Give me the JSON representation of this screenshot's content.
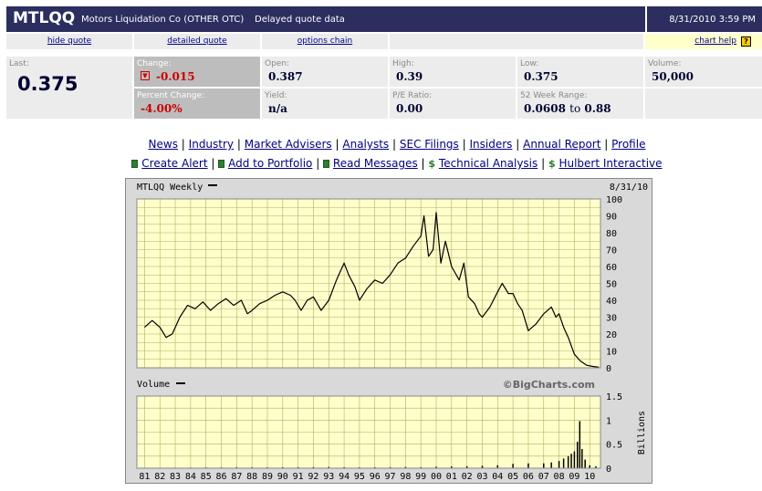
{
  "header": {
    "symbol": "MTLQQ",
    "company": "Motors Liquidation Co (OTHER OTC)",
    "delay_note": "Delayed quote data",
    "datetime": "8/31/2010 3:59 PM"
  },
  "links": {
    "hide_quote": "hide quote",
    "detailed_quote": "detailed quote",
    "options_chain": "options chain",
    "chart_help": "chart help",
    "help_icon": "?"
  },
  "quote": {
    "last_label": "Last:",
    "last": "0.375",
    "change_label": "Change:",
    "change": "-0.015",
    "pct_change_label": "Percent Change:",
    "pct_change": "-4.00%",
    "open_label": "Open:",
    "open": "0.387",
    "yield_label": "Yield:",
    "yield": "n/a",
    "high_label": "High:",
    "high": "0.39",
    "pe_label": "P/E Ratio:",
    "pe": "0.00",
    "low_label": "Low:",
    "low": "0.375",
    "range_label": "52 Week Range:",
    "range_low": "0.0608",
    "range_to": "to",
    "range_high": "0.88",
    "volume_label": "Volume:",
    "volume": "50,000"
  },
  "nav": {
    "news": "News",
    "industry": "Industry",
    "advisers": "Market Advisers",
    "analysts": "Analysts",
    "sec": "SEC Filings",
    "insiders": "Insiders",
    "annual": "Annual Report",
    "profile": "Profile",
    "alert": "Create Alert",
    "portfolio": "Add to Portfolio",
    "messages": "Read Messages",
    "technical": "Technical Analysis",
    "hulbert": "Hulbert Interactive",
    "sep": "|",
    "dollar": "$"
  },
  "chart_data": {
    "type": "line",
    "title": "MTLQQ Weekly",
    "date_label": "8/31/10",
    "watermark": "©BigCharts.com",
    "x_ticks": [
      "81",
      "82",
      "83",
      "84",
      "85",
      "86",
      "87",
      "88",
      "89",
      "90",
      "91",
      "92",
      "93",
      "94",
      "95",
      "96",
      "97",
      "98",
      "99",
      "00",
      "01",
      "02",
      "03",
      "04",
      "05",
      "06",
      "07",
      "08",
      "09",
      "10"
    ],
    "price_ticks": [
      "0",
      "10",
      "20",
      "30",
      "40",
      "50",
      "60",
      "70",
      "80",
      "90",
      "100"
    ],
    "price_ylim": [
      0,
      100
    ],
    "price_series": {
      "name": "MTLQQ",
      "x": [
        1981.0,
        1981.5,
        1982.0,
        1982.4,
        1982.8,
        1983.3,
        1983.8,
        1984.3,
        1984.8,
        1985.3,
        1985.8,
        1986.3,
        1986.8,
        1987.3,
        1987.7,
        1988.0,
        1988.5,
        1989.0,
        1989.5,
        1990.0,
        1990.5,
        1990.8,
        1991.2,
        1991.6,
        1992.0,
        1992.5,
        1993.0,
        1993.5,
        1994.0,
        1994.3,
        1994.7,
        1995.0,
        1995.5,
        1996.0,
        1996.5,
        1997.0,
        1997.5,
        1998.0,
        1998.5,
        1999.0,
        1999.2,
        1999.5,
        1999.8,
        2000.0,
        2000.3,
        2000.6,
        2001.0,
        2001.5,
        2001.8,
        2002.1,
        2002.5,
        2002.8,
        2003.0,
        2003.5,
        2004.0,
        2004.3,
        2004.7,
        2005.0,
        2005.3,
        2005.6,
        2006.0,
        2006.5,
        2007.0,
        2007.5,
        2007.8,
        2008.0,
        2008.3,
        2008.6,
        2009.0,
        2009.4,
        2009.8,
        2010.2,
        2010.6
      ],
      "y": [
        24,
        28,
        24,
        18,
        20,
        30,
        37,
        35,
        39,
        34,
        38,
        41,
        37,
        40,
        32,
        34,
        38,
        40,
        43,
        45,
        43,
        40,
        34,
        40,
        42,
        34,
        40,
        52,
        62,
        55,
        48,
        40,
        47,
        52,
        50,
        55,
        62,
        65,
        72,
        78,
        90,
        66,
        70,
        92,
        62,
        75,
        60,
        52,
        62,
        42,
        38,
        32,
        30,
        36,
        45,
        50,
        44,
        44,
        38,
        34,
        22,
        26,
        32,
        36,
        30,
        32,
        24,
        18,
        8,
        4,
        1.5,
        0.8,
        0.4
      ]
    },
    "volume_label": "Volume",
    "volume_unit": "Billions",
    "volume_ticks": [
      "0",
      "0.5",
      "1",
      "1.5"
    ],
    "volume_ylim": [
      0,
      1.5
    ],
    "volume_series": {
      "name": "Volume",
      "x": [
        1981,
        1982,
        1983,
        1984,
        1985,
        1986,
        1987,
        1988,
        1989,
        1990,
        1991,
        1992,
        1993,
        1994,
        1995,
        1996,
        1997,
        1998,
        1999,
        2000,
        2001,
        2002,
        2003,
        2004,
        2005,
        2006,
        2007,
        2007.5,
        2008,
        2008.3,
        2008.6,
        2008.8,
        2009.0,
        2009.2,
        2009.35,
        2009.5,
        2009.7,
        2010.0,
        2010.4
      ],
      "y": [
        0.01,
        0.01,
        0.012,
        0.012,
        0.015,
        0.015,
        0.02,
        0.018,
        0.018,
        0.02,
        0.02,
        0.022,
        0.025,
        0.02,
        0.018,
        0.02,
        0.02,
        0.025,
        0.02,
        0.03,
        0.035,
        0.04,
        0.05,
        0.06,
        0.09,
        0.1,
        0.1,
        0.12,
        0.15,
        0.2,
        0.25,
        0.3,
        0.35,
        0.55,
        0.98,
        0.4,
        0.18,
        0.06,
        0.04
      ]
    }
  },
  "colors": {
    "header_bg": "#2b2e5e",
    "plot_bg": "#ffffcc",
    "grid": "#b3ae60",
    "line": "#000000",
    "red": "#cc0000"
  }
}
